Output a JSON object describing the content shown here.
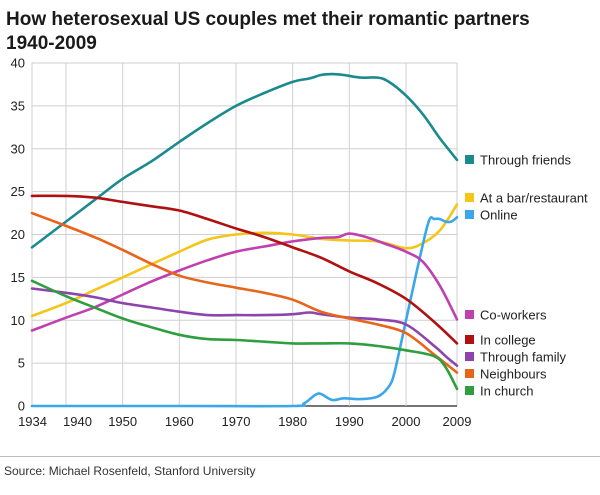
{
  "title_line1": "How heterosexual US couples met their romantic partners",
  "title_line2": "1940-2009",
  "source": "Source: Michael Rosenfeld, Stanford University",
  "chart_data": {
    "type": "line",
    "title": "How heterosexual US couples met their romantic partners 1940-2009",
    "xlabel": "",
    "ylabel": "",
    "xlim": [
      1934,
      2009
    ],
    "ylim": [
      0,
      40
    ],
    "xticks": [
      1934,
      1940,
      1950,
      1960,
      1970,
      1980,
      1990,
      2000,
      2009
    ],
    "yticks": [
      0,
      5,
      10,
      15,
      20,
      25,
      30,
      35,
      40
    ],
    "grid": true,
    "legend_placement": "right",
    "series": [
      {
        "name": "Through friends",
        "color": "#1a8a8f",
        "x": [
          1934,
          1940,
          1945,
          1950,
          1955,
          1960,
          1965,
          1970,
          1975,
          1980,
          1983,
          1985,
          1987,
          1989,
          1992,
          1995,
          1997,
          2000,
          2003,
          2006,
          2009
        ],
        "y": [
          18.5,
          21.5,
          24,
          26.5,
          28.5,
          30.8,
          33,
          35,
          36.5,
          37.8,
          38.2,
          38.6,
          38.7,
          38.6,
          38.3,
          38.3,
          37.8,
          36.2,
          34,
          31.2,
          28.7
        ]
      },
      {
        "name": "At a bar/restaurant",
        "color": "#f5c518",
        "x": [
          1934,
          1940,
          1945,
          1950,
          1955,
          1960,
          1965,
          1970,
          1975,
          1980,
          1985,
          1990,
          1995,
          2000,
          2003,
          2006,
          2009
        ],
        "y": [
          10.5,
          12,
          13.5,
          15,
          16.5,
          18,
          19.4,
          20,
          20.2,
          20,
          19.5,
          19.3,
          19.2,
          18.4,
          19,
          20.5,
          23.5
        ]
      },
      {
        "name": "Online",
        "color": "#3aa8e8",
        "x": [
          1934,
          1960,
          1980,
          1982,
          1984,
          1985,
          1987,
          1989,
          1992,
          1995,
          1997,
          1998,
          2000,
          2002,
          2004,
          2005,
          2006,
          2007,
          2008,
          2009
        ],
        "y": [
          0,
          0,
          0,
          0.3,
          1.3,
          1.4,
          0.7,
          0.9,
          0.8,
          1.1,
          2.3,
          4,
          10,
          16,
          21.5,
          21.8,
          21.8,
          21.5,
          21.5,
          22
        ]
      },
      {
        "name": "Co-workers",
        "color": "#c040b0",
        "x": [
          1934,
          1940,
          1945,
          1950,
          1955,
          1960,
          1965,
          1970,
          1975,
          1980,
          1985,
          1988,
          1990,
          1993,
          1996,
          2000,
          2003,
          2006,
          2009
        ],
        "y": [
          8.8,
          10.3,
          11.5,
          13,
          14.5,
          15.8,
          17,
          18,
          18.6,
          19.2,
          19.6,
          19.7,
          20.1,
          19.7,
          19,
          18,
          16.8,
          14,
          10.1
        ]
      },
      {
        "name": "In college",
        "color": "#b01010",
        "x": [
          1934,
          1940,
          1945,
          1950,
          1955,
          1960,
          1965,
          1970,
          1975,
          1980,
          1985,
          1990,
          1995,
          2000,
          2005,
          2009
        ],
        "y": [
          24.5,
          24.5,
          24.3,
          23.8,
          23.3,
          22.8,
          21.8,
          20.7,
          19.7,
          18.5,
          17.3,
          15.7,
          14.3,
          12.5,
          9.8,
          7.3
        ]
      },
      {
        "name": "Through family",
        "color": "#8e44ad",
        "x": [
          1934,
          1940,
          1945,
          1950,
          1955,
          1960,
          1965,
          1970,
          1975,
          1980,
          1983,
          1985,
          1990,
          1995,
          2000,
          2005,
          2007,
          2009
        ],
        "y": [
          13.7,
          13.2,
          12.7,
          12,
          11.5,
          11,
          10.6,
          10.6,
          10.6,
          10.7,
          10.9,
          10.7,
          10.3,
          10.1,
          9.5,
          7,
          5.8,
          4.7
        ]
      },
      {
        "name": "Neighbours",
        "color": "#e8641a",
        "x": [
          1934,
          1940,
          1945,
          1950,
          1955,
          1960,
          1965,
          1970,
          1975,
          1980,
          1985,
          1990,
          1995,
          2000,
          2005,
          2009
        ],
        "y": [
          22.5,
          21,
          19.7,
          18.2,
          16.6,
          15.2,
          14.4,
          13.8,
          13.2,
          12.4,
          11,
          10.2,
          9.5,
          8.5,
          6,
          3.9
        ]
      },
      {
        "name": "In church",
        "color": "#2e9e3e",
        "x": [
          1934,
          1940,
          1945,
          1950,
          1955,
          1960,
          1965,
          1970,
          1975,
          1980,
          1985,
          1990,
          1995,
          2000,
          2005,
          2007,
          2009
        ],
        "y": [
          14.6,
          12.8,
          11.5,
          10.2,
          9.2,
          8.3,
          7.8,
          7.7,
          7.5,
          7.3,
          7.3,
          7.3,
          7,
          6.5,
          5.8,
          4.5,
          2
        ]
      }
    ]
  }
}
